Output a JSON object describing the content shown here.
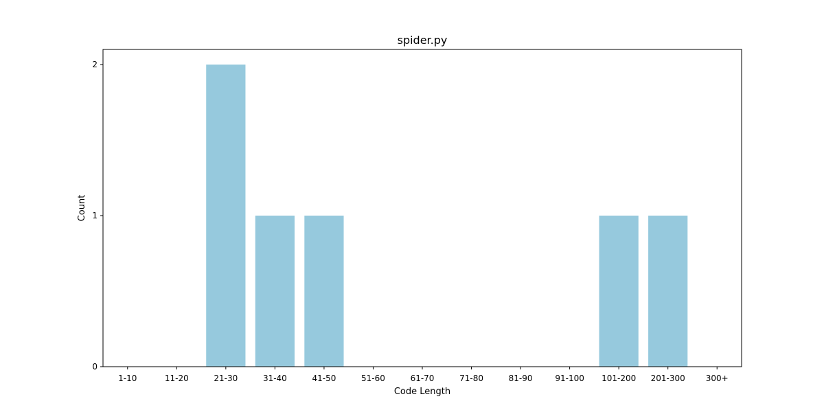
{
  "chart_data": {
    "type": "bar",
    "title": "spider.py",
    "xlabel": "Code Length",
    "ylabel": "Count",
    "categories": [
      "1-10",
      "11-20",
      "21-30",
      "31-40",
      "41-50",
      "51-60",
      "61-70",
      "71-80",
      "81-90",
      "91-100",
      "101-200",
      "201-300",
      "300+"
    ],
    "values": [
      0,
      0,
      2,
      1,
      1,
      0,
      0,
      0,
      0,
      0,
      1,
      1,
      0
    ],
    "ylim": [
      0,
      2.1
    ],
    "yticks": [
      0,
      1,
      2
    ],
    "bar_color": "#96c9dd",
    "grid": false,
    "legend": "none"
  }
}
